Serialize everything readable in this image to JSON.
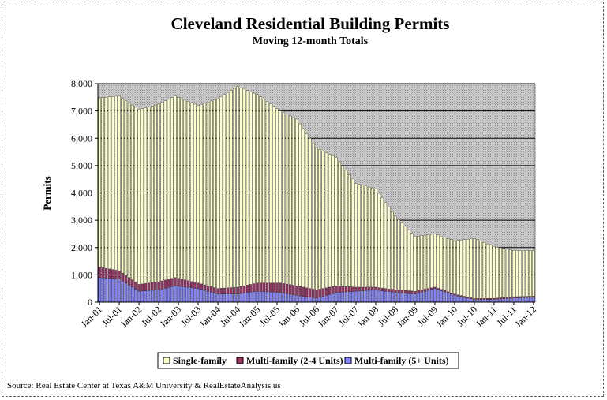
{
  "chart_data": {
    "type": "bar",
    "stacked": true,
    "title": "Cleveland Residential Building Permits",
    "subtitle": "Moving 12-month Totals",
    "ylabel": "Permits",
    "xlabel": "",
    "ylim": [
      0,
      8000
    ],
    "yticks": [
      "0",
      "1,000",
      "2,000",
      "3,000",
      "4,000",
      "5,000",
      "6,000",
      "7,000",
      "8,000"
    ],
    "ytick_values": [
      0,
      1000,
      2000,
      3000,
      4000,
      5000,
      6000,
      7000,
      8000
    ],
    "xticks": [
      "Jan-01",
      "Jul-01",
      "Jan-02",
      "Jul-02",
      "Jan-03",
      "Jul-03",
      "Jan-04",
      "Jul-04",
      "Jan-05",
      "Jul-05",
      "Jan-06",
      "Jul-06",
      "Jan-07",
      "Jul-07",
      "Jan-08",
      "Jul-08",
      "Jan-09",
      "Jul-09",
      "Jan-10",
      "Jul-10",
      "Jan-11",
      "Jul-11",
      "Jan-12"
    ],
    "first_month": "Jan-01",
    "grid": true,
    "legend_position": "bottom",
    "series": [
      {
        "name": "Multi-family (5+ Units)",
        "color": "#8080ff",
        "anchors": [
          [
            0,
            900
          ],
          [
            6,
            850
          ],
          [
            12,
            400
          ],
          [
            18,
            450
          ],
          [
            23,
            600
          ],
          [
            30,
            500
          ],
          [
            36,
            300
          ],
          [
            42,
            300
          ],
          [
            48,
            400
          ],
          [
            55,
            350
          ],
          [
            60,
            250
          ],
          [
            66,
            150
          ],
          [
            72,
            350
          ],
          [
            78,
            400
          ],
          [
            84,
            450
          ],
          [
            90,
            350
          ],
          [
            96,
            300
          ],
          [
            102,
            500
          ],
          [
            108,
            250
          ],
          [
            114,
            100
          ],
          [
            120,
            100
          ],
          [
            126,
            150
          ],
          [
            132,
            180
          ]
        ]
      },
      {
        "name": "Multi-family (2-4 Units)",
        "color": "#993366",
        "anchors": [
          [
            0,
            380
          ],
          [
            6,
            300
          ],
          [
            12,
            250
          ],
          [
            18,
            300
          ],
          [
            23,
            300
          ],
          [
            30,
            200
          ],
          [
            36,
            200
          ],
          [
            42,
            250
          ],
          [
            48,
            300
          ],
          [
            55,
            350
          ],
          [
            60,
            350
          ],
          [
            66,
            300
          ],
          [
            72,
            250
          ],
          [
            78,
            150
          ],
          [
            84,
            100
          ],
          [
            90,
            100
          ],
          [
            96,
            100
          ],
          [
            102,
            50
          ],
          [
            108,
            50
          ],
          [
            114,
            30
          ],
          [
            120,
            40
          ],
          [
            126,
            50
          ],
          [
            132,
            40
          ]
        ]
      },
      {
        "name": "Single-family",
        "color": "#ffffcc",
        "anchors": [
          [
            0,
            6200
          ],
          [
            6,
            6400
          ],
          [
            12,
            6400
          ],
          [
            18,
            6500
          ],
          [
            23,
            6650
          ],
          [
            30,
            6500
          ],
          [
            36,
            6950
          ],
          [
            42,
            7350
          ],
          [
            48,
            6900
          ],
          [
            55,
            6300
          ],
          [
            60,
            6100
          ],
          [
            66,
            5200
          ],
          [
            72,
            4700
          ],
          [
            78,
            3800
          ],
          [
            84,
            3600
          ],
          [
            90,
            2700
          ],
          [
            96,
            2000
          ],
          [
            102,
            1950
          ],
          [
            108,
            1950
          ],
          [
            114,
            2200
          ],
          [
            120,
            1900
          ],
          [
            126,
            1700
          ],
          [
            132,
            1670
          ]
        ]
      }
    ],
    "source": "Source: Real Estate Center at Texas A&M University & RealEstateAnalysis.us"
  }
}
